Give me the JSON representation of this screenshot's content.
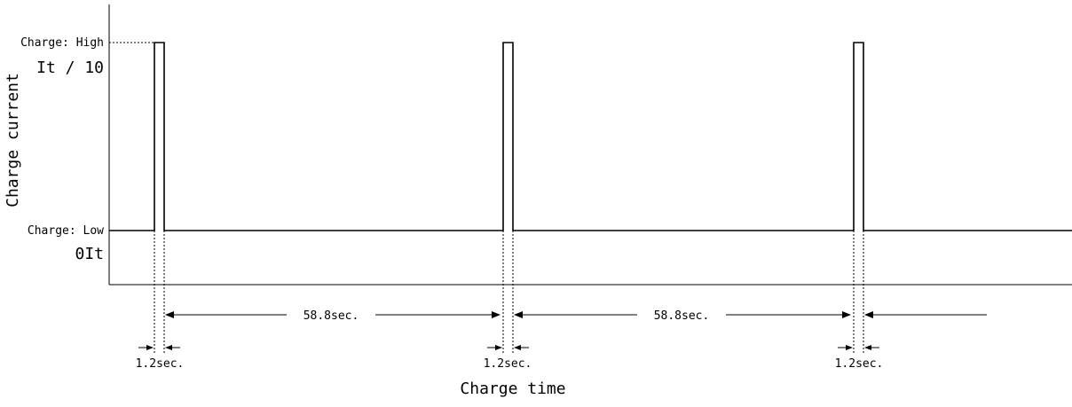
{
  "diagram": {
    "y_axis_title": "Charge current",
    "x_axis_title": "Charge time",
    "high_label": "Charge: High",
    "high_value": "It / 10",
    "low_label": "Charge: Low",
    "low_value": "0It",
    "pulse_width_label": "1.2sec.",
    "interval_label": "58.8sec.",
    "pulse_count": 3
  }
}
